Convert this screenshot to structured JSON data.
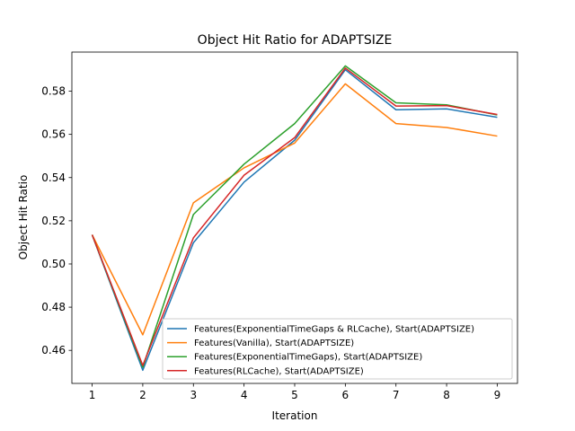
{
  "chart_data": {
    "type": "line",
    "title": "Object Hit Ratio for ADAPTSIZE",
    "xlabel": "Iteration",
    "ylabel": "Object Hit Ratio",
    "x": [
      1,
      2,
      3,
      4,
      5,
      6,
      7,
      8,
      9
    ],
    "xlim": [
      0.6,
      9.4
    ],
    "ylim": [
      0.4447,
      0.5981
    ],
    "xticks": [
      1,
      2,
      3,
      4,
      5,
      6,
      7,
      8,
      9
    ],
    "yticks": [
      0.46,
      0.48,
      0.5,
      0.52,
      0.54,
      0.56,
      0.58
    ],
    "grid": false,
    "legend_position": "lower-right",
    "series": [
      {
        "name": "Features(ExponentialTimeGaps & RLCache), Start(ADAPTSIZE)",
        "color": "#1f77b4",
        "values": [
          0.5135,
          0.4508,
          0.5098,
          0.5379,
          0.5573,
          0.5899,
          0.5714,
          0.5718,
          0.5679
        ]
      },
      {
        "name": "Features(Vanilla), Start(ADAPTSIZE)",
        "color": "#ff7f0e",
        "values": [
          0.5135,
          0.4672,
          0.5283,
          0.5445,
          0.556,
          0.5834,
          0.565,
          0.5632,
          0.5592
        ]
      },
      {
        "name": "Features(ExponentialTimeGaps), Start(ADAPTSIZE)",
        "color": "#2ca02c",
        "values": [
          0.5135,
          0.4522,
          0.5229,
          0.5462,
          0.565,
          0.5917,
          0.5746,
          0.5737,
          0.569
        ]
      },
      {
        "name": "Features(RLCache), Start(ADAPTSIZE)",
        "color": "#d62728",
        "values": [
          0.5135,
          0.453,
          0.5121,
          0.5411,
          0.5585,
          0.5907,
          0.5731,
          0.5733,
          0.5692
        ]
      }
    ]
  }
}
